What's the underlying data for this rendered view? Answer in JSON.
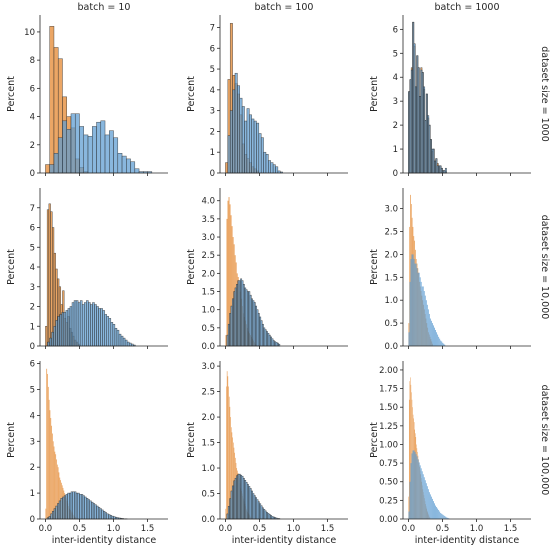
{
  "chart_data": {
    "type": "bar",
    "layout": "facet-grid-3x3",
    "xlabel": "inter-identity distance",
    "ylabel": "Percent",
    "x_ticks": [
      "0.0",
      "0.5",
      "1.0",
      "1.5"
    ],
    "xlim": [
      -0.08,
      1.8
    ],
    "column_titles": [
      "batch = 10",
      "batch = 100",
      "batch = 1000"
    ],
    "row_titles": [
      "dataset size = 1000",
      "dataset size = 10,000",
      "dataset size = 100,000"
    ],
    "colors": {
      "orange": "#e8964a",
      "blue": "#5b9bd1",
      "overlap": "#7d8a90"
    },
    "panels": [
      [
        {
          "ylim": [
            0,
            11.2
          ],
          "y_ticks": [
            0,
            2,
            4,
            6,
            8,
            10
          ],
          "series": [
            {
              "color": "orange",
              "x0": 0.0,
              "bin_width": 0.0625,
              "values": [
                0.6,
                10.4,
                8.9,
                8.1,
                5.4,
                4.0,
                3.2,
                1.0,
                0.4,
                0.1
              ]
            },
            {
              "color": "blue",
              "x0": 0.0,
              "bin_width": 0.0625,
              "values": [
                0.0,
                0.6,
                1.4,
                2.5,
                3.7,
                3.1,
                4.2,
                4.2,
                3.3,
                2.7,
                2.6,
                3.3,
                3.6,
                3.7,
                2.7,
                3.0,
                2.5,
                1.4,
                1.2,
                1.0,
                0.8,
                0.3,
                0.1,
                0.1,
                0.1
              ]
            }
          ]
        },
        {
          "ylim": [
            0,
            7.6
          ],
          "y_ticks": [
            0,
            1,
            2,
            3,
            4,
            5,
            6,
            7
          ],
          "series": [
            {
              "color": "orange",
              "x0": 0.0,
              "bin_width": 0.035,
              "values": [
                0.5,
                4.5,
                7.2,
                4.7,
                4.3,
                3.8,
                2.8,
                1.4,
                0.9,
                0.7,
                0.5,
                0.3,
                0.2,
                0.1
              ]
            },
            {
              "color": "blue",
              "x0": 0.0,
              "bin_width": 0.035,
              "values": [
                0.0,
                1.8,
                3.0,
                4.0,
                4.8,
                4.2,
                3.6,
                3.2,
                2.5,
                3.1,
                2.8,
                2.6,
                2.5,
                2.4,
                1.9,
                1.7,
                1.0,
                0.9,
                0.6,
                0.5,
                0.4,
                0.3,
                0.1,
                0.05
              ]
            }
          ]
        },
        {
          "ylim": [
            0,
            6.6
          ],
          "y_ticks": [
            0,
            1,
            2,
            3,
            4,
            5,
            6
          ],
          "series": [
            {
              "color": "orange",
              "x0": 0.0,
              "bin_width": 0.02,
              "values": [
                3.4,
                3.9,
                4.4,
                6.3,
                5.3,
                3.6,
                4.9,
                4.4,
                3.2,
                4.4,
                4.2,
                3.5,
                2.2,
                3.3,
                2.3,
                2.0,
                1.4,
                0.9,
                1.0,
                0.5,
                0.6,
                0.4,
                0.3,
                0.3,
                0.2,
                0.1,
                0.1,
                0.05
              ]
            },
            {
              "color": "blue",
              "x0": 0.0,
              "bin_width": 0.02,
              "values": [
                3.4,
                3.9,
                4.3,
                6.3,
                5.4,
                3.6,
                4.9,
                4.4,
                3.2,
                4.3,
                4.2,
                3.6,
                2.2,
                3.3,
                2.4,
                2.0,
                1.4,
                1.0,
                1.0,
                0.5,
                0.6,
                0.3,
                0.3,
                0.3,
                0.2,
                0.1,
                0.1,
                0.2
              ]
            }
          ]
        }
      ],
      [
        {
          "ylim": [
            0,
            8.0
          ],
          "y_ticks": [
            0,
            1,
            2,
            3,
            4,
            5,
            6,
            7
          ],
          "series": [
            {
              "color": "orange",
              "x0": 0.0,
              "bin_width": 0.025,
              "values": [
                1.0,
                6.9,
                7.2,
                6.8,
                6.0,
                4.7,
                3.9,
                3.4,
                3.0,
                2.1,
                2.8,
                1.4,
                1.2,
                1.5,
                0.9,
                0.7,
                0.5,
                0.3,
                0.2,
                0.1
              ]
            },
            {
              "color": "blue",
              "x0": 0.0,
              "bin_width": 0.03,
              "values": [
                0.0,
                0.2,
                0.4,
                0.7,
                1.0,
                1.3,
                1.5,
                1.6,
                1.7,
                1.7,
                1.8,
                1.9,
                2.0,
                2.2,
                2.3,
                2.3,
                2.2,
                2.3,
                2.1,
                2.2,
                2.3,
                2.2,
                2.1,
                2.2,
                2.1,
                2.0,
                1.9,
                1.9,
                1.8,
                1.6,
                1.5,
                1.4,
                1.2,
                1.1,
                0.9,
                0.8,
                0.6,
                0.5,
                0.4,
                0.3,
                0.2,
                0.15,
                0.1,
                0.05
              ]
            }
          ]
        },
        {
          "ylim": [
            0,
            4.35
          ],
          "y_ticks": [
            "0.0",
            "0.5",
            "1.0",
            "1.5",
            "2.0",
            "2.5",
            "3.0",
            "3.5",
            "4.0"
          ],
          "series": [
            {
              "color": "orange",
              "x0": 0.0,
              "bin_width": 0.015,
              "values": [
                0.3,
                3.5,
                4.0,
                4.1,
                3.9,
                3.6,
                3.3,
                3.0,
                2.8,
                2.5,
                2.3,
                2.0,
                1.9,
                1.7,
                1.5,
                1.3,
                1.1,
                0.9,
                0.8,
                0.7,
                0.6,
                0.5,
                0.4,
                0.35,
                0.3,
                0.25,
                0.2,
                0.15,
                0.1,
                0.05
              ]
            },
            {
              "color": "blue",
              "x0": 0.0,
              "bin_width": 0.02,
              "values": [
                0.0,
                0.3,
                0.6,
                0.9,
                1.1,
                1.3,
                1.5,
                1.6,
                1.7,
                1.8,
                1.8,
                1.85,
                1.8,
                1.7,
                1.6,
                1.55,
                1.5,
                1.5,
                1.4,
                1.3,
                1.25,
                1.2,
                1.1,
                1.0,
                0.9,
                0.8,
                0.7,
                0.6,
                0.5,
                0.45,
                0.4,
                0.35,
                0.3,
                0.25,
                0.2,
                0.15,
                0.12,
                0.1,
                0.08,
                0.05
              ]
            }
          ]
        },
        {
          "ylim": [
            0,
            3.45
          ],
          "y_ticks": [
            "0.0",
            "0.5",
            "1.0",
            "1.5",
            "2.0",
            "2.5",
            "3.0"
          ],
          "series": [
            {
              "color": "orange",
              "x0": 0.0,
              "bin_width": 0.012,
              "values": [
                0.5,
                2.6,
                3.3,
                3.1,
                2.8,
                2.6,
                2.4,
                2.3,
                2.1,
                1.9,
                1.8,
                1.7,
                1.6,
                1.4,
                1.3,
                1.2,
                1.1,
                1.0,
                0.9,
                0.8,
                0.7,
                0.6,
                0.5,
                0.4,
                0.3,
                0.25,
                0.2,
                0.15,
                0.1,
                0.05
              ]
            },
            {
              "color": "blue",
              "x0": 0.0,
              "bin_width": 0.015,
              "values": [
                0.3,
                1.4,
                1.9,
                2.0,
                2.0,
                1.9,
                1.8,
                1.8,
                1.7,
                1.6,
                1.6,
                1.5,
                1.4,
                1.3,
                1.3,
                1.2,
                1.1,
                1.0,
                0.9,
                0.8,
                0.7,
                0.6,
                0.55,
                0.5,
                0.45,
                0.4,
                0.35,
                0.3,
                0.25,
                0.2,
                0.16,
                0.12,
                0.1,
                0.07,
                0.05,
                0.03
              ]
            }
          ]
        }
      ],
      [
        {
          "ylim": [
            0,
            6.1
          ],
          "y_ticks": [
            0,
            1,
            2,
            3,
            4,
            5,
            6
          ],
          "series": [
            {
              "color": "orange",
              "x0": 0.0,
              "bin_width": 0.012,
              "values": [
                0.4,
                5.8,
                5.6,
                5.1,
                4.6,
                4.2,
                3.9,
                3.6,
                3.3,
                3.0,
                2.8,
                2.6,
                2.5,
                2.3,
                2.1,
                2.0,
                1.8,
                1.6,
                1.5,
                1.4,
                1.3,
                1.2,
                1.1,
                1.0,
                0.9,
                0.8,
                0.7,
                0.6,
                0.5,
                0.4,
                0.35,
                0.3,
                0.25,
                0.2,
                0.15,
                0.1,
                0.08,
                0.05
              ]
            },
            {
              "color": "blue",
              "x0": 0.0,
              "bin_width": 0.025,
              "values": [
                0.0,
                0.05,
                0.1,
                0.2,
                0.3,
                0.4,
                0.5,
                0.6,
                0.7,
                0.8,
                0.85,
                0.9,
                0.95,
                1.0,
                1.0,
                1.05,
                1.05,
                1.05,
                1.0,
                1.0,
                0.95,
                0.95,
                0.9,
                0.85,
                0.8,
                0.75,
                0.7,
                0.65,
                0.6,
                0.55,
                0.5,
                0.45,
                0.4,
                0.35,
                0.3,
                0.25,
                0.2,
                0.17,
                0.14,
                0.11,
                0.09,
                0.07,
                0.05,
                0.04,
                0.03,
                0.02,
                0.01,
                0.01
              ]
            }
          ]
        },
        {
          "ylim": [
            0,
            3.1
          ],
          "y_ticks": [
            "0.0",
            "0.5",
            "1.0",
            "1.5",
            "2.0",
            "2.5",
            "3.0"
          ],
          "series": [
            {
              "color": "orange",
              "x0": 0.0,
              "bin_width": 0.01,
              "values": [
                0.2,
                2.6,
                2.9,
                2.8,
                2.6,
                2.4,
                2.2,
                2.0,
                1.8,
                1.7,
                1.6,
                1.5,
                1.4,
                1.3,
                1.2,
                1.1,
                1.0,
                0.95,
                0.9,
                0.85,
                0.8,
                0.7,
                0.6,
                0.55,
                0.5,
                0.45,
                0.4,
                0.35,
                0.3,
                0.25,
                0.2,
                0.17,
                0.14,
                0.11,
                0.09,
                0.07,
                0.05,
                0.03
              ]
            },
            {
              "color": "blue",
              "x0": 0.0,
              "bin_width": 0.02,
              "values": [
                0.0,
                0.1,
                0.25,
                0.4,
                0.55,
                0.65,
                0.75,
                0.8,
                0.85,
                0.88,
                0.88,
                0.86,
                0.84,
                0.8,
                0.76,
                0.72,
                0.68,
                0.64,
                0.6,
                0.55,
                0.5,
                0.46,
                0.42,
                0.38,
                0.34,
                0.3,
                0.26,
                0.22,
                0.19,
                0.16,
                0.13,
                0.11,
                0.09,
                0.07,
                0.05,
                0.04,
                0.03,
                0.02,
                0.01,
                0.01
              ]
            }
          ]
        },
        {
          "ylim": [
            0,
            2.12
          ],
          "y_ticks": [
            "0.00",
            "0.25",
            "0.50",
            "0.75",
            "1.00",
            "1.25",
            "1.50",
            "1.75",
            "2.00"
          ],
          "series": [
            {
              "color": "orange",
              "x0": 0.0,
              "bin_width": 0.008,
              "values": [
                0.3,
                1.6,
                1.85,
                1.9,
                1.8,
                1.7,
                1.6,
                1.5,
                1.4,
                1.35,
                1.3,
                1.2,
                1.15,
                1.1,
                1.0,
                0.95,
                0.9,
                0.85,
                0.8,
                0.75,
                0.7,
                0.65,
                0.6,
                0.55,
                0.5,
                0.45,
                0.4,
                0.36,
                0.32,
                0.28,
                0.24,
                0.2,
                0.17,
                0.14,
                0.11,
                0.09,
                0.07,
                0.05,
                0.03,
                0.02
              ]
            },
            {
              "color": "blue",
              "x0": 0.0,
              "bin_width": 0.015,
              "values": [
                0.1,
                0.5,
                0.75,
                0.88,
                0.92,
                0.92,
                0.9,
                0.87,
                0.84,
                0.8,
                0.76,
                0.72,
                0.68,
                0.64,
                0.6,
                0.56,
                0.52,
                0.48,
                0.44,
                0.4,
                0.36,
                0.33,
                0.3,
                0.27,
                0.24,
                0.21,
                0.18,
                0.16,
                0.14,
                0.12,
                0.1,
                0.08,
                0.07,
                0.06,
                0.05,
                0.04,
                0.03,
                0.02,
                0.015,
                0.01
              ]
            }
          ]
        }
      ]
    ]
  }
}
